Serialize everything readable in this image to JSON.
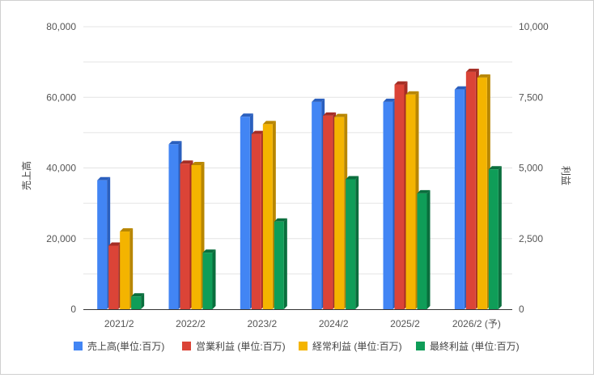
{
  "chart_data": {
    "type": "bar",
    "style": "3d-bar",
    "categories": [
      "2021/2",
      "2022/2",
      "2023/2",
      "2024/2",
      "2025/2",
      "2026/2 (予)"
    ],
    "y_left": {
      "label": "売上高",
      "range": [
        0,
        80000
      ],
      "ticks": [
        0,
        20000,
        40000,
        60000,
        80000
      ],
      "tick_labels": [
        "0",
        "20,000",
        "40,000",
        "60,000",
        "80,000"
      ]
    },
    "y_right": {
      "label": "利益",
      "range": [
        0,
        10000
      ],
      "ticks": [
        0,
        2500,
        5000,
        7500,
        10000
      ],
      "tick_labels": [
        "0",
        "2,500",
        "5,000",
        "7,500",
        "10,000"
      ]
    },
    "series": [
      {
        "name": "売上高(単位:百万)",
        "axis": "left",
        "color": "#4285f4",
        "side": "#2a5fbe",
        "values": [
          36500,
          46700,
          54500,
          58700,
          58700,
          62200
        ]
      },
      {
        "name": "営業利益 (単位:百万)",
        "axis": "right",
        "color": "#db4437",
        "side": "#a52d24",
        "values": [
          2250,
          5150,
          6200,
          6850,
          7950,
          8400
        ]
      },
      {
        "name": "経常利益 (単位:百万)",
        "axis": "right",
        "color": "#f4b400",
        "side": "#b88600",
        "values": [
          2750,
          5100,
          6550,
          6800,
          7600,
          8200
        ]
      },
      {
        "name": "最終利益 (単位:百万)",
        "axis": "right",
        "color": "#0f9d58",
        "side": "#0a6e3d",
        "values": [
          450,
          2000,
          3100,
          4600,
          4100,
          4950
        ]
      }
    ],
    "legend": "bottom",
    "grid": true
  }
}
